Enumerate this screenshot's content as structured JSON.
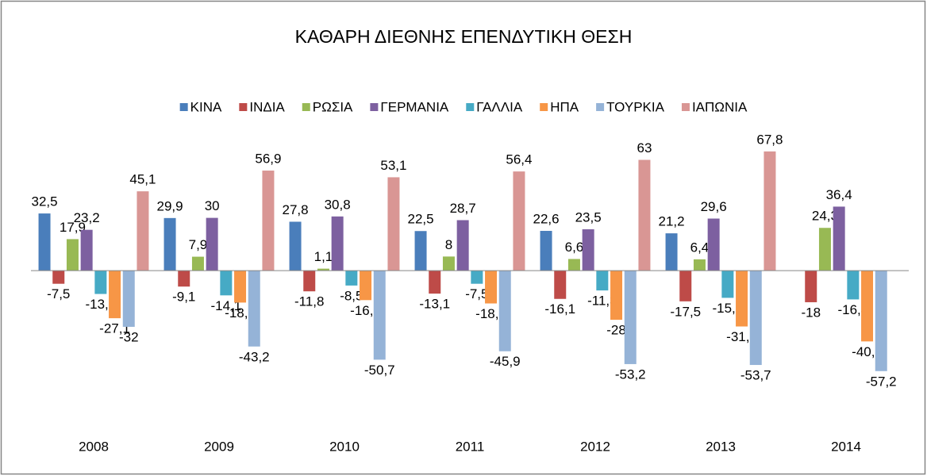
{
  "chart_data": {
    "type": "bar",
    "title": "ΚΑΘΑΡΗ ΔΙΕΘΝΗΣ ΕΠΕΝΔΥΤΙΚΗ ΘΕΣΗ",
    "categories": [
      "2008",
      "2009",
      "2010",
      "2011",
      "2012",
      "2013",
      "2014"
    ],
    "ylim": [
      -60,
      70
    ],
    "legend": "top",
    "series": [
      {
        "name": "ΚΙΝΑ",
        "color": "#4a7ebb",
        "values": [
          32.5,
          29.9,
          27.8,
          22.5,
          22.6,
          21.2,
          null
        ],
        "value_labels": [
          "32,5",
          "29,9",
          "27,8",
          "22,5",
          "22,6",
          "21,2",
          null
        ]
      },
      {
        "name": "ΙΝΔΙΑ",
        "color": "#be4b48",
        "values": [
          -7.5,
          -9.1,
          -11.8,
          -13.1,
          -16.1,
          -17.5,
          -18
        ],
        "value_labels": [
          "-7,5",
          "-9,1",
          "-11,8",
          "-13,1",
          "-16,1",
          "-17,5",
          "-18"
        ]
      },
      {
        "name": "ΡΩΣΙΑ",
        "color": "#98b954",
        "values": [
          17.9,
          7.9,
          1.1,
          8,
          6.6,
          6.4,
          24.3
        ],
        "value_labels": [
          "17,9",
          "7,9",
          "1,1",
          "8",
          "6,6",
          "6,4",
          "24,3"
        ]
      },
      {
        "name": "ΓΕΡΜΑΝΙΑ",
        "color": "#7d60a0",
        "values": [
          23.2,
          30,
          30.8,
          28.7,
          23.5,
          29.6,
          36.4
        ],
        "value_labels": [
          "23,2",
          "30",
          "30,8",
          "28,7",
          "23,5",
          "29,6",
          "36,4"
        ]
      },
      {
        "name": "ΓΑΛΛΙΑ",
        "color": "#46aac5",
        "values": [
          -13.3,
          -14.1,
          -8.5,
          -7.5,
          -11.3,
          -15.5,
          -16.4
        ],
        "value_labels": [
          "-13,3",
          "-14,1",
          "-8,5",
          "-7,5",
          "-11,3",
          "-15,5",
          "-16,4"
        ]
      },
      {
        "name": "ΗΠΑ",
        "color": "#f79646",
        "values": [
          -27.1,
          -18.2,
          -16.8,
          -18.7,
          -28,
          -31.8,
          -40.3
        ],
        "value_labels": [
          "-27,1",
          "-18,2",
          "-16,8",
          "-18,7",
          "-28",
          "-31,8",
          "-40,3"
        ]
      },
      {
        "name": "ΤΟΥΡΚΙΑ",
        "color": "#95b3d7",
        "values": [
          -32,
          -43.2,
          -50.7,
          -45.9,
          -53.2,
          -53.7,
          -57.2
        ],
        "value_labels": [
          "-32",
          "-43,2",
          "-50,7",
          "-45,9",
          "-53,2",
          "-53,7",
          "-57,2"
        ]
      },
      {
        "name": "ΙΑΠΩΝΙΑ",
        "color": "#d99694",
        "values": [
          45.1,
          56.9,
          53.1,
          56.4,
          63,
          67.8,
          null
        ],
        "value_labels": [
          "45,1",
          "56,9",
          "53,1",
          "56,4",
          "63",
          "67,8",
          null
        ]
      }
    ]
  }
}
